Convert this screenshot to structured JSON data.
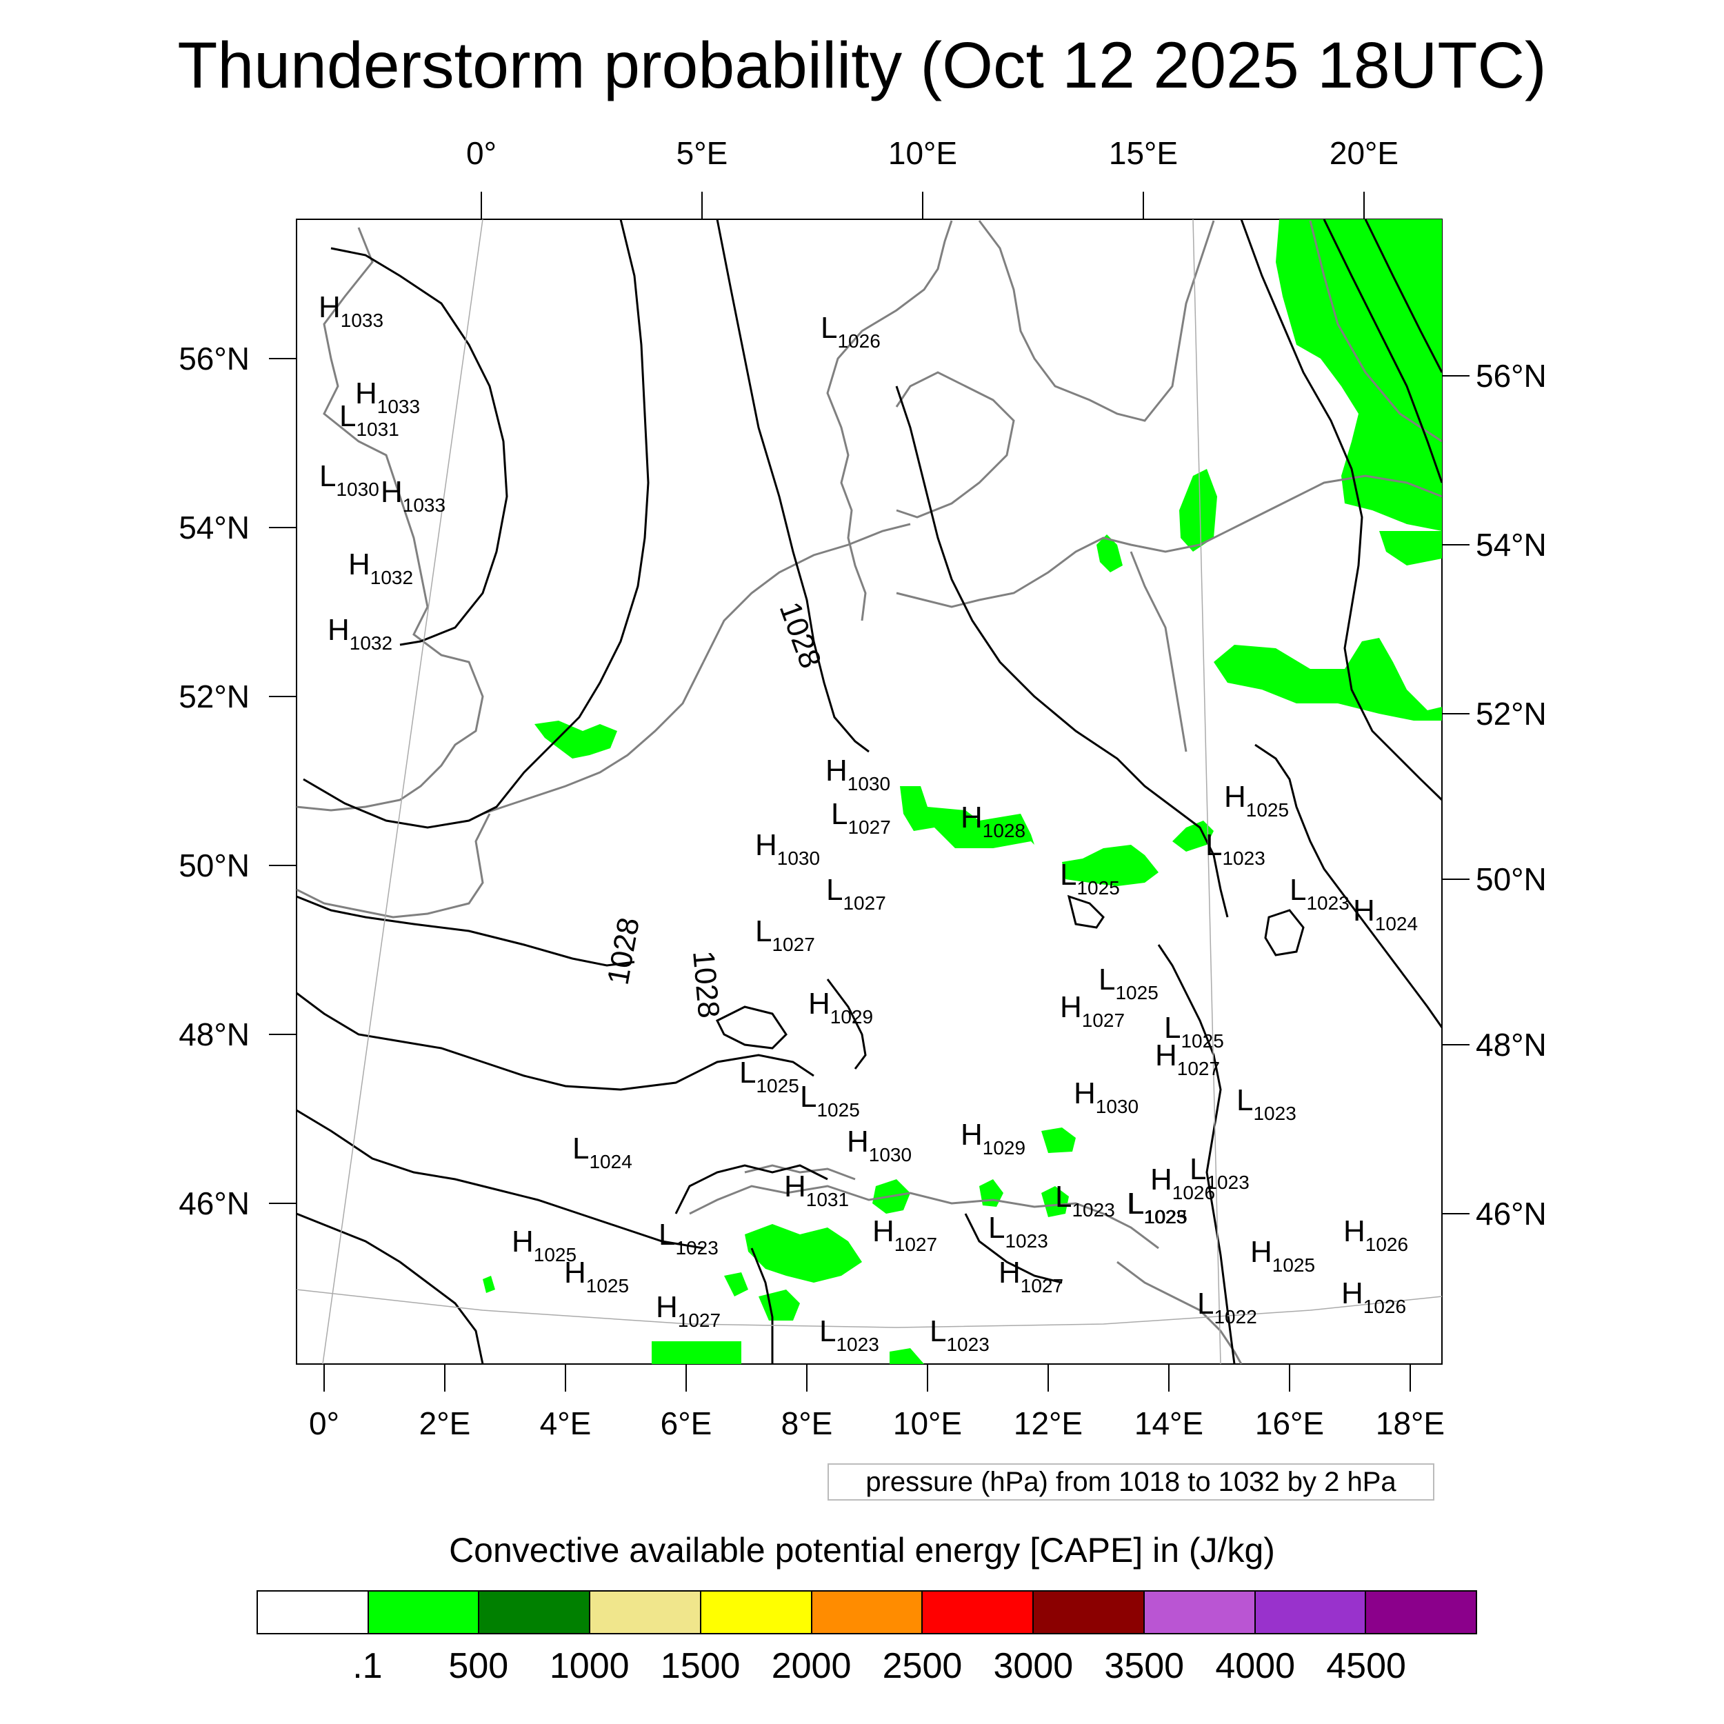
{
  "title": "Thunderstorm probability (Oct 12 2025 18UTC)",
  "axes": {
    "top_lon_labels": [
      "0°",
      "5°E",
      "10°E",
      "15°E",
      "20°E"
    ],
    "bottom_lon_labels": [
      "0°",
      "2°E",
      "4°E",
      "6°E",
      "8°E",
      "10°E",
      "12°E",
      "14°E",
      "16°E",
      "18°E"
    ],
    "left_lat_labels": [
      "56°N",
      "54°N",
      "52°N",
      "50°N",
      "48°N",
      "46°N"
    ],
    "right_lat_labels": [
      "56°N",
      "54°N",
      "52°N",
      "50°N",
      "48°N",
      "46°N"
    ]
  },
  "contour_labels": [
    "1028",
    "1028",
    "1028"
  ],
  "pressure_centers": [
    {
      "type": "H",
      "value": "1033"
    },
    {
      "type": "H",
      "value": "1033"
    },
    {
      "type": "L",
      "value": "1031"
    },
    {
      "type": "L",
      "value": "1030"
    },
    {
      "type": "H",
      "value": "1033"
    },
    {
      "type": "H",
      "value": "1032"
    },
    {
      "type": "H",
      "value": "1032"
    },
    {
      "type": "L",
      "value": "1026"
    },
    {
      "type": "H",
      "value": "1030"
    },
    {
      "type": "L",
      "value": "1027"
    },
    {
      "type": "H",
      "value": "1030"
    },
    {
      "type": "L",
      "value": "1027"
    },
    {
      "type": "L",
      "value": "1027"
    },
    {
      "type": "H",
      "value": "1028"
    },
    {
      "type": "L",
      "value": "1025"
    },
    {
      "type": "H",
      "value": "1025"
    },
    {
      "type": "L",
      "value": "1023"
    },
    {
      "type": "L",
      "value": "1023"
    },
    {
      "type": "H",
      "value": "1024"
    },
    {
      "type": "H",
      "value": "1029"
    },
    {
      "type": "L",
      "value": "1025"
    },
    {
      "type": "H",
      "value": "1027"
    },
    {
      "type": "L",
      "value": "1025"
    },
    {
      "type": "H",
      "value": "1027"
    },
    {
      "type": "L",
      "value": "1025"
    },
    {
      "type": "L",
      "value": "1025"
    },
    {
      "type": "H",
      "value": "1030"
    },
    {
      "type": "L",
      "value": "1023"
    },
    {
      "type": "L",
      "value": "1024"
    },
    {
      "type": "H",
      "value": "1030"
    },
    {
      "type": "H",
      "value": "1029"
    },
    {
      "type": "L",
      "value": "1023"
    },
    {
      "type": "H",
      "value": "1031"
    },
    {
      "type": "L",
      "value": "1023"
    },
    {
      "type": "H",
      "value": "1026"
    },
    {
      "type": "L",
      "value": "1023"
    },
    {
      "type": "H",
      "value": "1025"
    },
    {
      "type": "H",
      "value": "1025"
    },
    {
      "type": "L",
      "value": "1023"
    },
    {
      "type": "H",
      "value": "1027"
    },
    {
      "type": "L",
      "value": "1023"
    },
    {
      "type": "H",
      "value": "1027"
    },
    {
      "type": "H",
      "value": "1025"
    },
    {
      "type": "H",
      "value": "1026"
    },
    {
      "type": "H",
      "value": "1026"
    },
    {
      "type": "L",
      "value": "1022"
    },
    {
      "type": "H",
      "value": "1027"
    },
    {
      "type": "L",
      "value": "1023"
    },
    {
      "type": "L",
      "value": "1023"
    },
    {
      "type": "L",
      "value": "1025"
    }
  ],
  "pressure_note": "pressure (hPa) from 1018 to 1032 by 2 hPa",
  "cape": {
    "title": "Convective available potential energy [CAPE] in (J/kg)",
    "colors": [
      "#ffffff",
      "#00ff00",
      "#008000",
      "#f0e68c",
      "#ffff00",
      "#ff8c00",
      "#ff0000",
      "#8b0000",
      "#ba55d3",
      "#9932cc",
      "#8b008b"
    ],
    "labels": [
      ".1",
      "500",
      "1000",
      "1500",
      "2000",
      "2500",
      "3000",
      "3500",
      "4000",
      "4500"
    ]
  },
  "colors": {
    "cape_fill": "#00ff00",
    "coastline": "#808080",
    "isobar": "#000000"
  }
}
